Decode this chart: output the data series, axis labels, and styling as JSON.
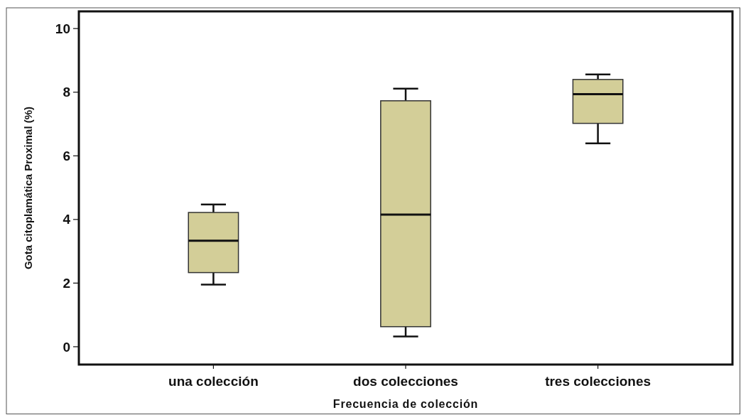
{
  "chart_data": {
    "type": "box",
    "xlabel": "Frecuencia de colección",
    "ylabel": "Gota citoplamática Proximal (%)",
    "categories": [
      "una colección",
      "dos colecciones",
      "tres colecciones"
    ],
    "series": [
      {
        "color": "#d3ce98",
        "boxes": [
          {
            "low": 1.95,
            "q1": 2.33,
            "median": 3.33,
            "q3": 4.22,
            "high": 4.47
          },
          {
            "low": 0.32,
            "q1": 0.63,
            "median": 4.15,
            "q3": 7.73,
            "high": 8.11
          },
          {
            "low": 6.39,
            "q1": 7.02,
            "median": 7.94,
            "q3": 8.4,
            "high": 8.56
          }
        ]
      }
    ],
    "ylim": [
      -0.56,
      10.54
    ],
    "yticks": [
      0,
      2,
      4,
      6,
      8,
      10
    ]
  }
}
